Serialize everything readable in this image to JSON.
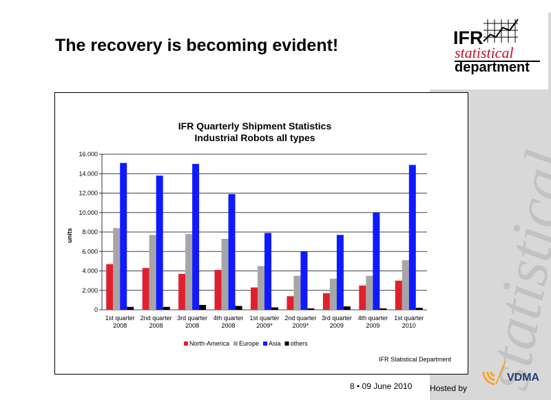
{
  "slide": {
    "title": "The recovery is becoming evident!",
    "footer": "8 •  09 June 2010",
    "hosted_by": "Hosted by"
  },
  "logo": {
    "ifr": "IFR",
    "statistical": "statistical",
    "department": "department",
    "vdma": "VDMA",
    "watermark": "statistical"
  },
  "colors": {
    "north_america": "#e0202e",
    "europe": "#a6a6a6",
    "asia": "#0f1aff",
    "others": "#000000",
    "vdma_orange": "#f5a623",
    "vdma_blue": "#1f3d7a"
  },
  "chart_data": {
    "type": "bar",
    "title": "IFR Quarterly Shipment Statistics",
    "subtitle": "Industrial Robots all types",
    "ylabel": "units",
    "ylim": [
      0,
      16000
    ],
    "yticks": [
      "0",
      "2.000",
      "4.000",
      "6.000",
      "8.000",
      "10.000",
      "12.000",
      "14.000",
      "16.000"
    ],
    "grid": true,
    "legend_position": "bottom",
    "source_note": "IFR Statistical Department",
    "categories": [
      [
        "1st quarter",
        "2008"
      ],
      [
        "2nd quarter",
        "2008"
      ],
      [
        "3rd quarter",
        "2008"
      ],
      [
        "4th quarter",
        "2008"
      ],
      [
        "1st quarter",
        "2009*"
      ],
      [
        "2nd quarter",
        "2009*"
      ],
      [
        "3rd quarter",
        "2009"
      ],
      [
        "4th quarter",
        "2009"
      ],
      [
        "1st quarter",
        "2010"
      ]
    ],
    "series": [
      {
        "name": "North-America",
        "color": "#e0202e",
        "values": [
          4700,
          4300,
          3700,
          4100,
          2300,
          1400,
          1700,
          2500,
          3000
        ]
      },
      {
        "name": "Europe",
        "color": "#a6a6a6",
        "values": [
          8400,
          7700,
          7800,
          7300,
          4500,
          3500,
          3200,
          3500,
          5100
        ]
      },
      {
        "name": "Asia",
        "color": "#0f1aff",
        "values": [
          15100,
          13800,
          15000,
          11900,
          7900,
          6000,
          7700,
          10000,
          14900
        ]
      },
      {
        "name": "others",
        "color": "#000000",
        "values": [
          300,
          300,
          500,
          400,
          250,
          150,
          350,
          150,
          200
        ]
      }
    ]
  }
}
